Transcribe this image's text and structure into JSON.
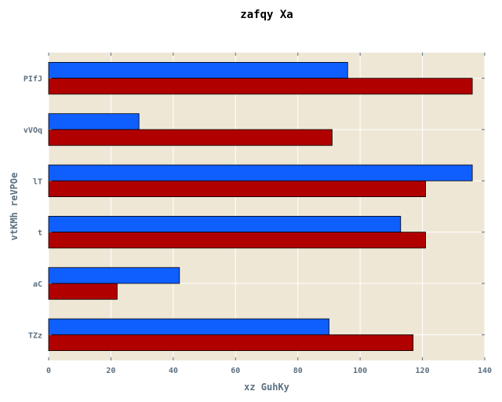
{
  "chart_data": {
    "type": "bar",
    "orientation": "horizontal",
    "title": "zafqy Xa",
    "xlabel": "xz GuhKy",
    "ylabel": "vtKMh reVPOe",
    "categories": [
      "TZz",
      "aC",
      "t",
      "lT",
      "vVOq",
      "PIfJ"
    ],
    "series": [
      {
        "color": "#0f5fff",
        "values": [
          90,
          42,
          113,
          136,
          29,
          96
        ]
      },
      {
        "color": "#b00000",
        "values": [
          117,
          22,
          121,
          121,
          91,
          136
        ]
      }
    ],
    "xlim": [
      0,
      140
    ],
    "xticks": [
      0,
      20,
      40,
      60,
      80,
      100,
      120,
      140
    ],
    "grid": true,
    "background": "#eee7d5",
    "grid_color": "#ffffff",
    "tick_color": "#5c7080"
  }
}
